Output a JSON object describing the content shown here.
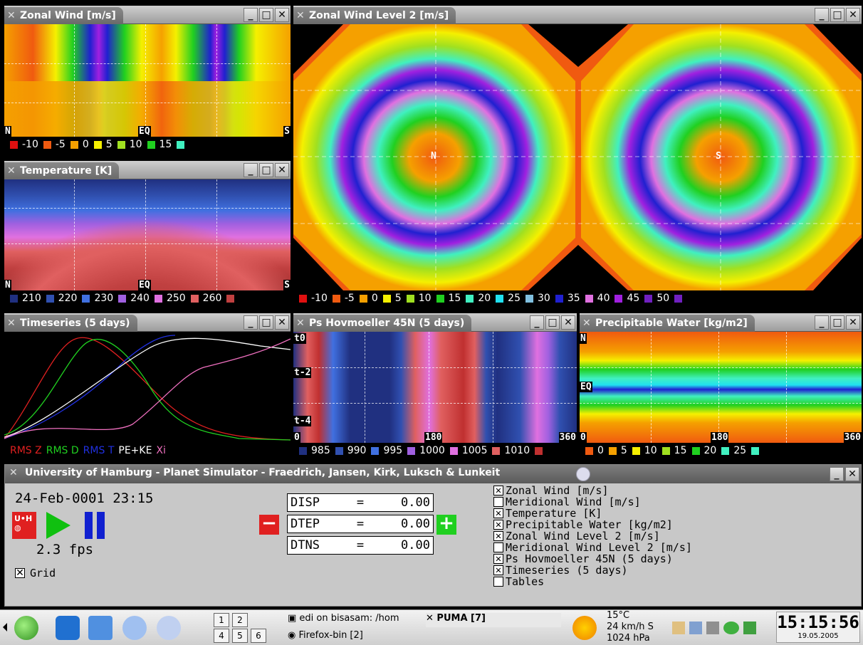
{
  "windows": {
    "zonal_wind": {
      "title": "Zonal Wind [m/s]",
      "lat_labels": [
        "N",
        "EQ",
        "S"
      ],
      "legend": [
        "-10",
        "-5",
        "0",
        "5",
        "10",
        "15"
      ],
      "legend_colors": [
        "#e01010",
        "#f05a10",
        "#f5a000",
        "#f5f000",
        "#a0e020",
        "#20d020",
        "#40f0c0"
      ]
    },
    "temperature": {
      "title": "Temperature [K]",
      "lat_labels": [
        "N",
        "EQ",
        "S"
      ],
      "legend": [
        "210",
        "220",
        "230",
        "240",
        "250",
        "260"
      ],
      "legend_colors": [
        "#203080",
        "#3050b0",
        "#4070e0",
        "#a060e0",
        "#e070e0",
        "#e06060",
        "#c04040"
      ]
    },
    "zonal_wind_l2": {
      "title": "Zonal Wind Level 2 [m/s]",
      "pole_labels": [
        "N",
        "S"
      ],
      "legend": [
        "-10",
        "-5",
        "0",
        "5",
        "10",
        "15",
        "20",
        "25",
        "30",
        "35",
        "40",
        "45",
        "50"
      ],
      "legend_colors": [
        "#e01010",
        "#f05a10",
        "#f5a000",
        "#f5f000",
        "#a0e020",
        "#20d020",
        "#40f0c0",
        "#20e0f0",
        "#80c0e0",
        "#2020d0",
        "#e070e0",
        "#a020e0",
        "#7020c0"
      ]
    },
    "timeseries": {
      "title": "Timeseries (5 days)",
      "legend": [
        {
          "label": "RMS Z",
          "color": "#e02020"
        },
        {
          "label": "RMS D",
          "color": "#20d020"
        },
        {
          "label": "RMS T",
          "color": "#2030e0"
        },
        {
          "label": "PE+KE",
          "color": "#ffffff"
        },
        {
          "label": "Xi",
          "color": "#f070c0"
        }
      ]
    },
    "ps_hovmoeller": {
      "title": "Ps Hovmoeller 45N (5 days)",
      "y_labels": [
        "t0",
        "t-2",
        "t-4"
      ],
      "x_labels": [
        "0",
        "180",
        "360"
      ],
      "legend": [
        "985",
        "990",
        "995",
        "1000",
        "1005",
        "1010"
      ],
      "legend_colors": [
        "#203080",
        "#3050b0",
        "#4070e0",
        "#a060e0",
        "#e070e0",
        "#e06060",
        "#c03030"
      ]
    },
    "precipitable_water": {
      "title": "Precipitable Water [kg/m2]",
      "y_labels": [
        "N",
        "EQ"
      ],
      "x_labels": [
        "0",
        "180",
        "360"
      ],
      "legend": [
        "0",
        "5",
        "10",
        "15",
        "20",
        "25"
      ],
      "legend_colors": [
        "#f05a10",
        "#f5a000",
        "#f5f000",
        "#a0e020",
        "#20d020",
        "#40f0c0"
      ]
    }
  },
  "control": {
    "title": "University of Hamburg - Planet Simulator - Fraedrich, Jansen, Kirk, Luksch & Lunkeit",
    "date": "24-Feb-0001 23:15",
    "fps": "2.3 fps",
    "grid_label": "Grid",
    "grid_checked": true,
    "params": [
      {
        "name": "DISP",
        "eq": "=",
        "value": "0.00"
      },
      {
        "name": "DTEP",
        "eq": "=",
        "value": "0.00"
      },
      {
        "name": "DTNS",
        "eq": "=",
        "value": "0.00"
      }
    ],
    "toggles": [
      {
        "label": "Zonal Wind [m/s]",
        "checked": true
      },
      {
        "label": "Meridional Wind [m/s]",
        "checked": false
      },
      {
        "label": "Temperature [K]",
        "checked": true
      },
      {
        "label": "Precipitable Water [kg/m2]",
        "checked": true
      },
      {
        "label": "Zonal Wind Level 2 [m/s]",
        "checked": true
      },
      {
        "label": "Meridional Wind Level 2 [m/s]",
        "checked": false
      },
      {
        "label": "Ps Hovmoeller 45N (5 days)",
        "checked": true
      },
      {
        "label": "Timeseries (5 days)",
        "checked": true
      },
      {
        "label": "Tables",
        "checked": false
      }
    ]
  },
  "taskbar": {
    "desktops": [
      "1",
      "2",
      "4",
      "5",
      "6"
    ],
    "tasks": [
      "edi on bisasam: /hom",
      "PUMA [7]",
      "Firefox-bin [2]"
    ],
    "weather": {
      "temp": "15°C",
      "wind": "24 km/h S",
      "pressure": "1024 hPa"
    },
    "clock": "15:15:56",
    "date": "19.05.2005"
  }
}
